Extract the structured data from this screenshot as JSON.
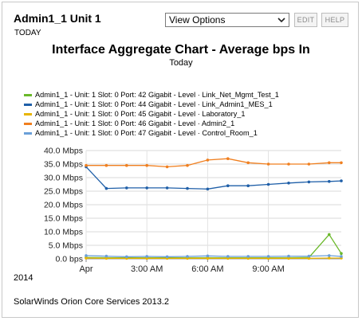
{
  "resource": {
    "title": "Admin1_1 Unit 1",
    "subtitle": "TODAY"
  },
  "toolbar": {
    "view_options": "View Options",
    "edit_label": "EDIT",
    "help_label": "HELP"
  },
  "icons": {
    "dropdown": "chevron-down-icon"
  },
  "footer": {
    "year": "2014",
    "product": "SolarWinds Orion Core Services 2013.2"
  },
  "chart_data": {
    "type": "line",
    "title": "Interface Aggregate Chart - Average bps In",
    "subtitle": "Today",
    "ylim": [
      0,
      40
    ],
    "yticks": [
      0,
      5,
      10,
      15,
      20,
      25,
      30,
      35,
      40
    ],
    "ytick_labels": [
      "0.0 bps",
      "5.0 Mbps",
      "10.0 Mbps",
      "15.0 Mbps",
      "20.0 Mbps",
      "25.0 Mbps",
      "30.0 Mbps",
      "35.0 Mbps",
      "40.0 Mbps"
    ],
    "xlim": [
      0,
      12.6
    ],
    "xticks": [
      0,
      3,
      6,
      9
    ],
    "xtick_labels": [
      "Apr",
      "3:00 AM",
      "6:00 AM",
      "9:00 AM"
    ],
    "grid": true,
    "legend_position": "top",
    "x": [
      0.0,
      1.0,
      2.0,
      3.0,
      4.0,
      5.0,
      6.0,
      7.0,
      8.0,
      9.0,
      10.0,
      11.0,
      12.0,
      12.6
    ],
    "series": [
      {
        "name": "Admin1_1 - Unit: 1 Slot: 0 Port: 42 Gigabit - Level · Link_Net_Mgmt_Test_1",
        "color": "#6ab82a",
        "values": [
          0.5,
          0.4,
          0.4,
          0.4,
          0.4,
          0.4,
          0.4,
          0.4,
          0.4,
          0.4,
          0.4,
          0.5,
          9.0,
          2.0
        ]
      },
      {
        "name": "Admin1_1 - Unit: 1 Slot: 0 Port: 44 Gigabit - Level · Link_Admin1_MES_1",
        "color": "#1f5fa8",
        "values": [
          34.0,
          26.0,
          26.2,
          26.2,
          26.2,
          26.0,
          25.8,
          27.0,
          27.0,
          27.5,
          28.0,
          28.4,
          28.6,
          28.8
        ]
      },
      {
        "name": "Admin1_1 - Unit: 1 Slot: 0 Port: 45 Gigabit - Level · Laboratory_1",
        "color": "#e8b400",
        "values": [
          0.3,
          0.2,
          0.2,
          0.2,
          0.2,
          0.2,
          0.2,
          0.2,
          0.2,
          0.2,
          0.2,
          0.2,
          0.3,
          0.3
        ]
      },
      {
        "name": "Admin1_1 - Unit: 1 Slot: 0 Port: 46 Gigabit - Level · Admin2_1",
        "color": "#f07f1f",
        "values": [
          34.5,
          34.5,
          34.5,
          34.5,
          34.0,
          34.5,
          36.5,
          37.0,
          35.5,
          35.0,
          35.0,
          35.0,
          35.5,
          35.5
        ]
      },
      {
        "name": "Admin1_1 - Unit: 1 Slot: 0 Port: 47 Gigabit - Level · Control_Room_1",
        "color": "#6a9fd8",
        "values": [
          1.2,
          1.0,
          0.8,
          0.9,
          0.8,
          0.9,
          1.1,
          0.9,
          0.9,
          0.9,
          1.0,
          1.0,
          1.2,
          0.9
        ]
      }
    ]
  }
}
